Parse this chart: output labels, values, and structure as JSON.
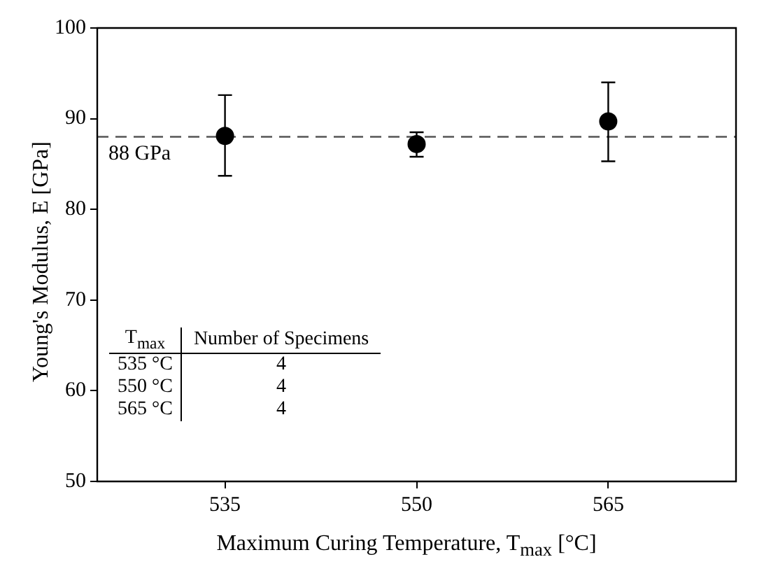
{
  "chart_data": {
    "type": "scatter",
    "xlabel": "Maximum Curing Temperature, T$_{max}$ [°C]",
    "ylabel": "Young's Modulus, E [GPa]",
    "x": [
      535,
      550,
      565
    ],
    "values": [
      88.1,
      87.2,
      89.7
    ],
    "errors": [
      [
        83.7,
        92.6
      ],
      [
        85.8,
        88.5
      ],
      [
        85.3,
        94.0
      ]
    ],
    "color": "#000000",
    "marker": "circle",
    "xlim": [
      525,
      575
    ],
    "xticks": [
      535,
      550,
      565
    ],
    "ylim": [
      50,
      100
    ],
    "yticks": [
      50,
      60,
      70,
      80,
      90,
      100
    ],
    "grid": false,
    "legend": false,
    "ref_lines": [
      {
        "axis": "y",
        "value": 88,
        "label": "88 GPa",
        "color": "#555555",
        "line_style": "dashed"
      }
    ],
    "annotations": [
      "T$_{max}$",
      "Number of Specimens",
      "535 °C",
      "4",
      "550 °C",
      "4",
      "565 °C",
      "4"
    ]
  }
}
